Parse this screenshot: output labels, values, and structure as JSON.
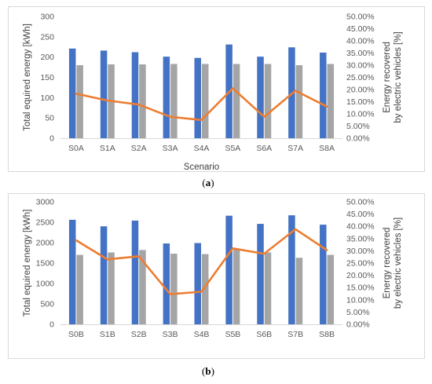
{
  "chart_data": [
    {
      "type": "bar",
      "caption_letter": "a",
      "categories": [
        "S0A",
        "S1A",
        "S2A",
        "S3A",
        "S4A",
        "S5A",
        "S6A",
        "S7A",
        "S8A"
      ],
      "series": [
        {
          "type": "bar",
          "axis": "left",
          "color": "#4472C4",
          "values": [
            221,
            216,
            212,
            201,
            198,
            231,
            201,
            224,
            211
          ]
        },
        {
          "type": "bar",
          "axis": "left",
          "color": "#A5A5A5",
          "values": [
            180,
            182,
            182,
            183,
            183,
            183,
            183,
            180,
            183
          ]
        },
        {
          "type": "line",
          "axis": "right",
          "color": "#ED7D31",
          "values": [
            0.183,
            0.155,
            0.138,
            0.088,
            0.075,
            0.205,
            0.088,
            0.195,
            0.13
          ]
        }
      ],
      "xlabel": "Scenario",
      "ylabel": "Total equired energy [kWh]",
      "ylabel_right": [
        "Energy recovered",
        "by electric vehicles [%]"
      ],
      "ylim": [
        0,
        300
      ],
      "yticks": [
        "0",
        "50",
        "100",
        "150",
        "200",
        "250",
        "300"
      ],
      "ylim_right": [
        0,
        0.5
      ],
      "yticks_right": [
        "0.00%",
        "5.00%",
        "10.00%",
        "15.00%",
        "20.00%",
        "25.00%",
        "30.00%",
        "35.00%",
        "40.00%",
        "45.00%",
        "50.00%"
      ],
      "grid": false,
      "legend": "none"
    },
    {
      "type": "bar",
      "caption_letter": "b",
      "categories": [
        "S0B",
        "S1B",
        "S2B",
        "S3B",
        "S4B",
        "S5B",
        "S6B",
        "S7B",
        "S8B"
      ],
      "series": [
        {
          "type": "bar",
          "axis": "left",
          "color": "#4472C4",
          "values": [
            2560,
            2400,
            2540,
            1980,
            1990,
            2660,
            2460,
            2670,
            2440
          ]
        },
        {
          "type": "bar",
          "axis": "left",
          "color": "#A5A5A5",
          "values": [
            1700,
            1760,
            1820,
            1730,
            1720,
            1830,
            1760,
            1630,
            1700
          ]
        },
        {
          "type": "line",
          "axis": "right",
          "color": "#ED7D31",
          "values": [
            0.343,
            0.265,
            0.278,
            0.123,
            0.133,
            0.31,
            0.288,
            0.388,
            0.303
          ]
        }
      ],
      "xlabel": "",
      "ylabel": "Total equired energy [kWh]",
      "ylabel_right": [
        "Energy recovered",
        "by electric vehicles [%]"
      ],
      "ylim": [
        0,
        3000
      ],
      "yticks": [
        "0",
        "500",
        "1000",
        "1500",
        "2000",
        "2500",
        "3000"
      ],
      "ylim_right": [
        0,
        0.5
      ],
      "yticks_right": [
        "0.00%",
        "5.00%",
        "10.00%",
        "15.00%",
        "20.00%",
        "25.00%",
        "30.00%",
        "35.00%",
        "40.00%",
        "45.00%",
        "50.00%"
      ],
      "grid": false,
      "legend": "none"
    }
  ]
}
